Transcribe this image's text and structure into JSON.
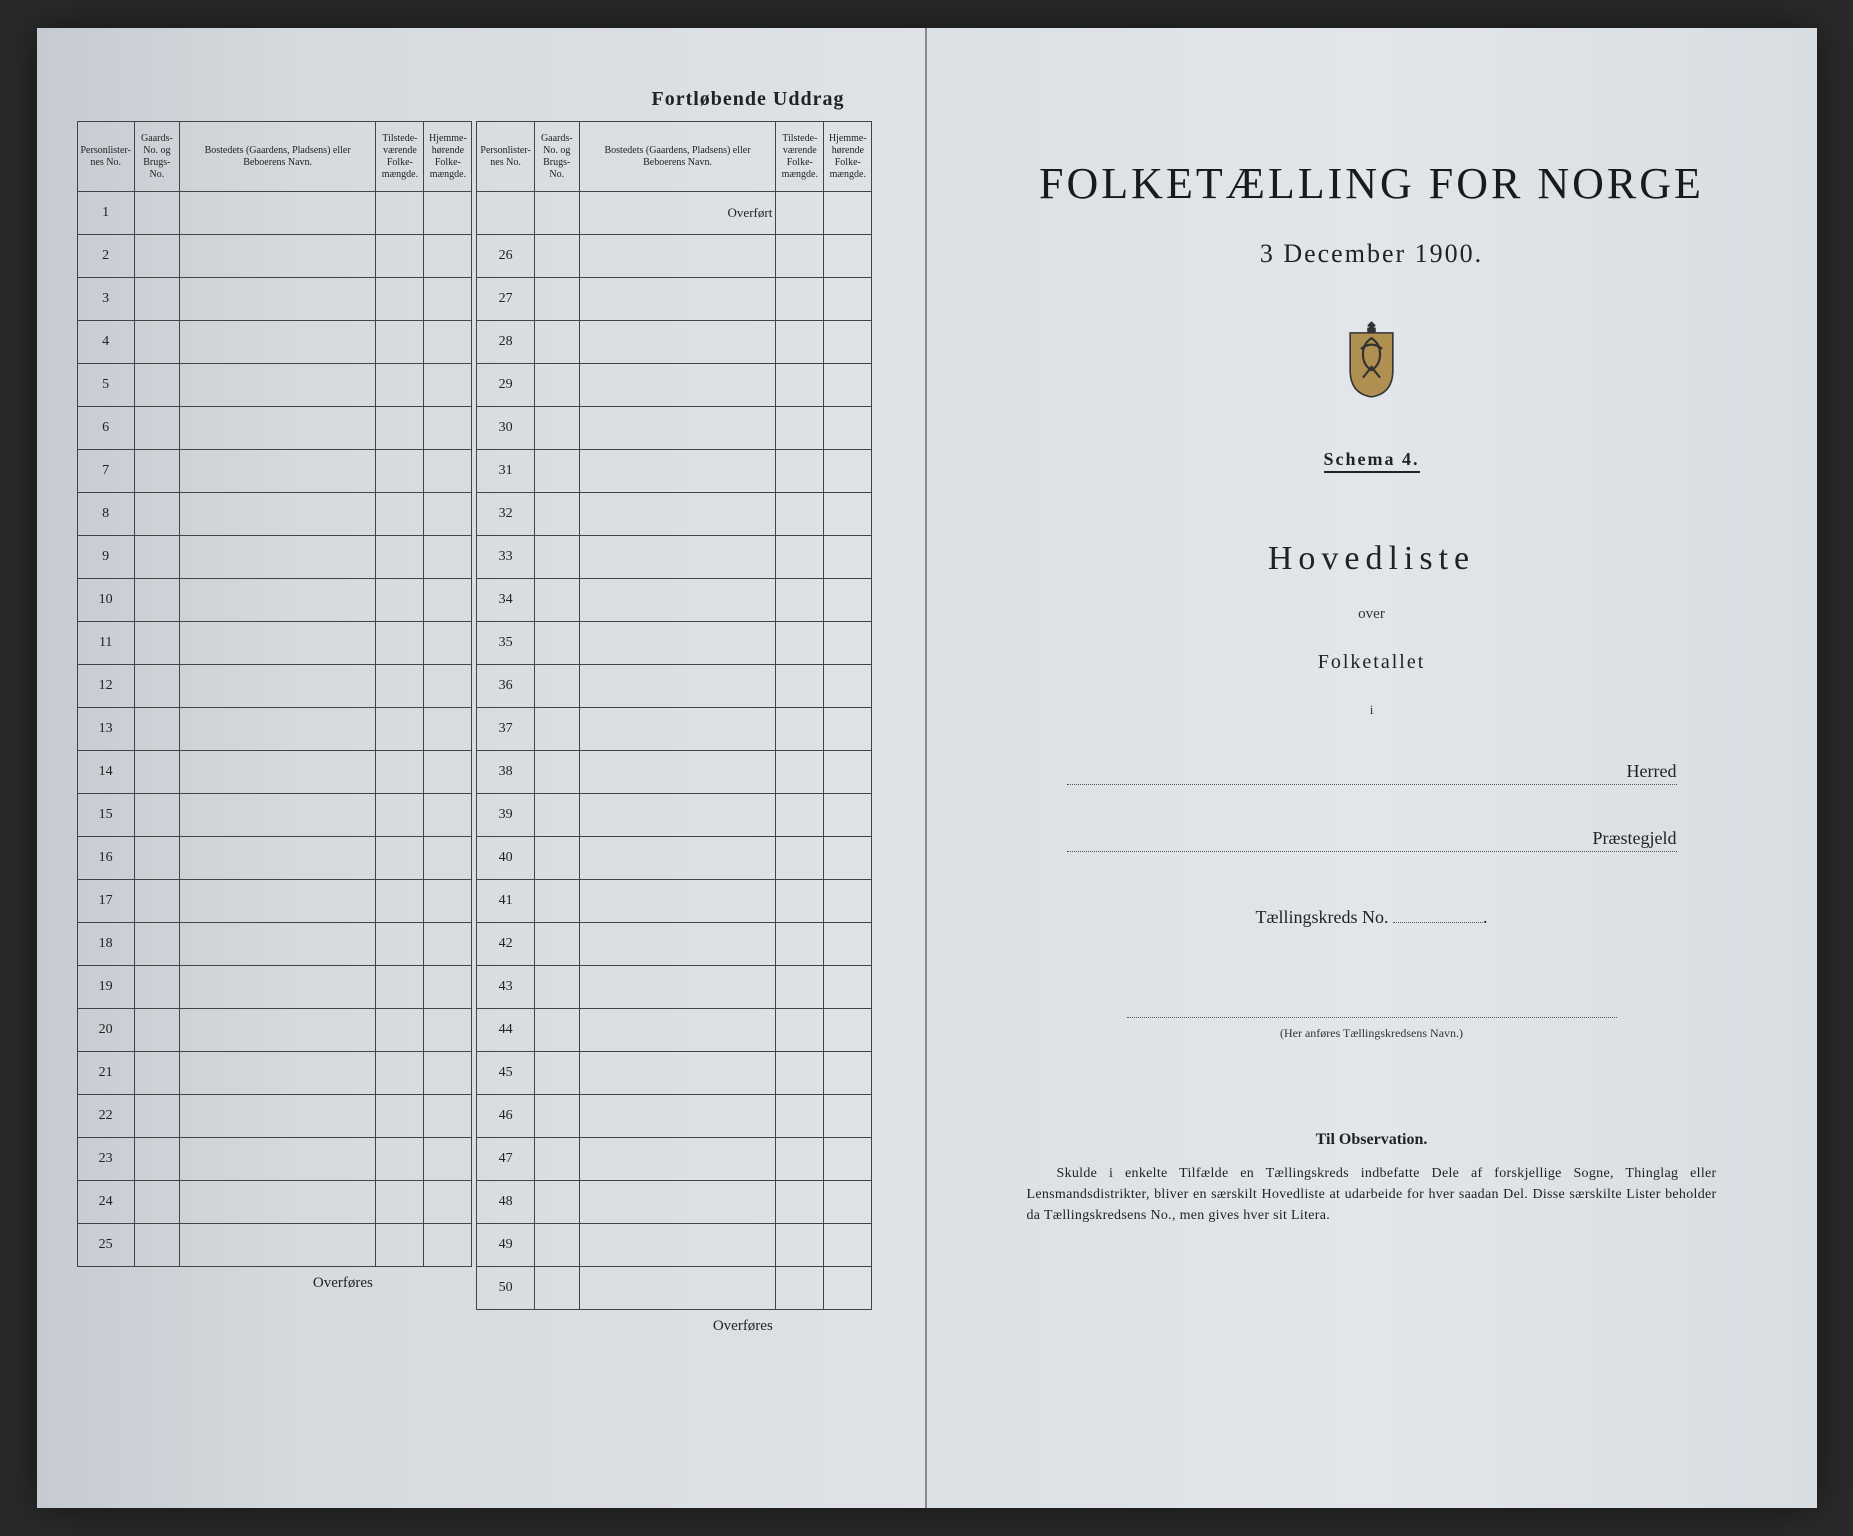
{
  "left": {
    "heading": "Fortløbende Uddrag",
    "columns": {
      "personlister": "Personlister-nes No.",
      "gaard": "Gaards-No. og Brugs-No.",
      "bosted": "Bostedets (Gaardens, Pladsens) eller Beboerens Navn.",
      "tilstede": "Tilstede-værende Folke-mængde.",
      "hjemme": "Hjemme-hørende Folke-mængde."
    },
    "overfort": "Overført",
    "overfores": "Overføres",
    "rows_left": [
      "1",
      "2",
      "3",
      "4",
      "5",
      "6",
      "7",
      "8",
      "9",
      "10",
      "11",
      "12",
      "13",
      "14",
      "15",
      "16",
      "17",
      "18",
      "19",
      "20",
      "21",
      "22",
      "23",
      "24",
      "25"
    ],
    "rows_right": [
      "26",
      "27",
      "28",
      "29",
      "30",
      "31",
      "32",
      "33",
      "34",
      "35",
      "36",
      "37",
      "38",
      "39",
      "40",
      "41",
      "42",
      "43",
      "44",
      "45",
      "46",
      "47",
      "48",
      "49",
      "50"
    ]
  },
  "right": {
    "title": "FOLKETÆLLING FOR NORGE",
    "date": "3 December 1900.",
    "schema": "Schema 4.",
    "hovedliste": "Hovedliste",
    "over": "over",
    "folketallet": "Folketallet",
    "small_i": "i",
    "herred": "Herred",
    "praestegjeld": "Præstegjeld",
    "taellingskreds": "Tællingskreds No.",
    "note_caption": "(Her anføres Tællingskredsens Navn.)",
    "observation_head": "Til Observation.",
    "observation_body": "Skulde i enkelte Tilfælde en Tællingskreds indbefatte Dele af forskjellige Sogne, Thinglag eller Lensmandsdistrikter, bliver en særskilt Hovedliste at udarbeide for hver saadan Del. Disse særskilte Lister beholder da Tællingskredsens No., men gives hver sit Litera."
  },
  "colors": {
    "paper": "#dfe3e7",
    "ink": "#222222",
    "border": "#444444",
    "background": "#2a2a2a"
  }
}
